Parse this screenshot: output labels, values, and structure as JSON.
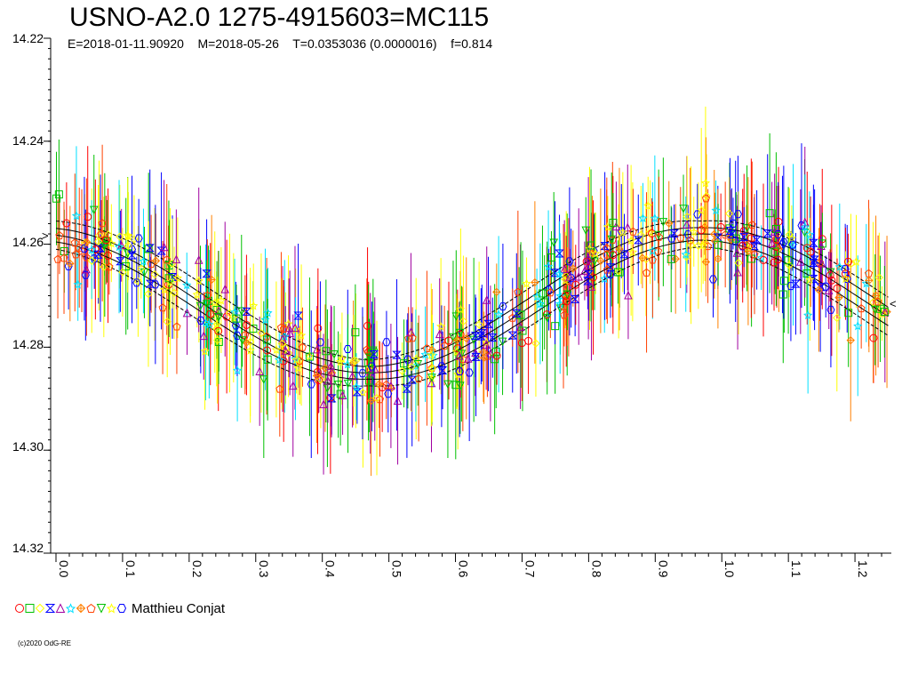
{
  "chart_data": {
    "type": "scatter",
    "title": "USNO-A2.0 1275-4915603=MC115",
    "subtitle": "E=2018-01-11.90920    M=2018-05-26    T=0.0353036 (0.0000016)    f=0.814",
    "x_ticks": [
      "0.0",
      "0.1",
      "0.2",
      "0.3",
      "0.4",
      "0.5",
      "0.6",
      "0.7",
      "0.8",
      "0.9",
      "1.0",
      "1.1",
      "1.2"
    ],
    "y_ticks": [
      "14.22",
      "14.24",
      "14.26",
      "14.28",
      "14.30",
      "14.32"
    ],
    "xlim": [
      0.0,
      1.25
    ],
    "ylim": [
      14.22,
      14.32
    ],
    "y_inverted": true,
    "x_minor_step": 0.02,
    "fit": {
      "mean": 14.2715,
      "amplitude": 0.0135,
      "max_phase": 0.97,
      "band_inner": 0.0012,
      "band_outer": 0.0025
    },
    "observer_colors": [
      "#ff0000",
      "#00c000",
      "#ffff00",
      "#0000ff",
      "#a000a0",
      "#00e0ff",
      "#ff8000",
      "#ff4000",
      "#00c000",
      "#ffff00",
      "#0000ff"
    ],
    "legend": {
      "marker_colors": [
        "#ff0000",
        "#00c000",
        "#ffff00",
        "#0000ff",
        "#a000a0",
        "#00e0ff",
        "#ff8000",
        "#ff4000",
        "#00c000",
        "#ffff00",
        "#0000ff"
      ],
      "marker_shapes": [
        "circle",
        "square",
        "diamond",
        "bowtie",
        "triangle",
        "star",
        "cross",
        "pentagon",
        "tri-down",
        "star",
        "hexagon"
      ],
      "observer": "Matthieu Conjat"
    },
    "copyright": "(c)2020 OdG-RE"
  }
}
